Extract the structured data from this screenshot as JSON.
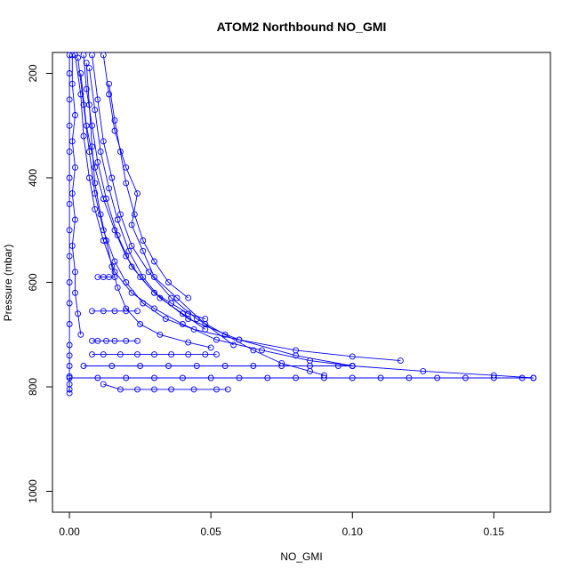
{
  "chart_data": {
    "type": "scatter",
    "title": "ATOM2 Northbound NO_GMI",
    "xlabel": "NO_GMI",
    "ylabel": "Pressure (mbar)",
    "xlim": [
      -0.006,
      0.17
    ],
    "ylim": [
      1040,
      160
    ],
    "y_reversed": true,
    "x_ticks": [
      0.0,
      0.05,
      0.1,
      0.15
    ],
    "x_tick_labels": [
      "0.00",
      "0.05",
      "0.10",
      "0.15"
    ],
    "y_ticks": [
      200,
      400,
      600,
      800,
      1000
    ],
    "y_tick_labels": [
      "200",
      "400",
      "600",
      "800",
      "1000"
    ],
    "marker": "open-circle",
    "line_style": "solid-with-points",
    "grid": false,
    "legend": "none",
    "colors": {
      "series": "#0000ff",
      "axes": "#000000",
      "background": "#ffffff"
    },
    "series": [
      {
        "x": [
          0.0,
          0.0,
          0.0,
          0.0,
          0.0,
          0.0,
          0.0,
          0.0,
          0.0,
          0.0,
          0.0,
          0.0,
          0.0,
          0.0,
          0.0,
          0.0,
          0.0,
          0.0,
          0.0
        ],
        "y": [
          165,
          200,
          250,
          300,
          350,
          400,
          450,
          500,
          550,
          600,
          640,
          680,
          720,
          740,
          760,
          780,
          795,
          805,
          812
        ]
      },
      {
        "x": [
          0.001,
          0.001,
          0.002,
          0.001,
          0.002,
          0.001,
          0.002,
          0.001,
          0.002,
          0.002,
          0.003,
          0.004
        ],
        "y": [
          165,
          220,
          280,
          330,
          380,
          430,
          480,
          530,
          580,
          620,
          660,
          700
        ]
      },
      {
        "x": [
          0.002,
          0.004,
          0.005,
          0.007,
          0.009,
          0.012,
          0.016,
          0.022,
          0.03,
          0.04,
          0.052,
          0.068,
          0.085,
          0.1
        ],
        "y": [
          165,
          240,
          320,
          400,
          460,
          520,
          580,
          620,
          650,
          680,
          710,
          730,
          750,
          760
        ]
      },
      {
        "x": [
          0.005,
          0.006,
          0.008,
          0.01,
          0.013,
          0.017,
          0.022,
          0.03,
          0.042,
          0.06,
          0.08,
          0.1,
          0.125,
          0.15,
          0.164
        ],
        "y": [
          165,
          230,
          300,
          370,
          440,
          510,
          570,
          620,
          670,
          710,
          740,
          760,
          770,
          778,
          783
        ]
      },
      {
        "x": [
          0.008,
          0.01,
          0.012,
          0.015,
          0.018,
          0.022,
          0.028,
          0.036,
          0.045,
          0.055,
          0.065,
          0.075,
          0.085,
          0.09
        ],
        "y": [
          165,
          250,
          330,
          400,
          470,
          530,
          580,
          630,
          670,
          700,
          730,
          755,
          770,
          778
        ]
      },
      {
        "x": [
          0.012,
          0.014,
          0.016,
          0.02,
          0.024,
          0.022,
          0.026,
          0.03,
          0.038,
          0.048,
          0.058
        ],
        "y": [
          165,
          240,
          310,
          380,
          430,
          490,
          540,
          590,
          630,
          680,
          720
        ]
      },
      {
        "x": [
          0.006,
          0.007,
          0.008,
          0.009,
          0.011,
          0.013,
          0.015,
          0.017,
          0.02,
          0.025,
          0.032,
          0.042,
          0.05
        ],
        "y": [
          180,
          260,
          340,
          410,
          470,
          520,
          570,
          610,
          650,
          680,
          700,
          715,
          725
        ]
      },
      {
        "x": [
          0.0,
          0.01,
          0.02,
          0.03,
          0.04,
          0.05,
          0.06,
          0.07,
          0.08,
          0.09,
          0.1,
          0.11,
          0.12,
          0.13,
          0.14,
          0.15,
          0.16,
          0.164
        ],
        "y": [
          783,
          783,
          783,
          783,
          783,
          783,
          783,
          783,
          783,
          783,
          783,
          783,
          783,
          783,
          783,
          783,
          783,
          783
        ]
      },
      {
        "x": [
          0.005,
          0.015,
          0.025,
          0.035,
          0.045,
          0.055,
          0.065,
          0.075,
          0.085,
          0.095,
          0.1
        ],
        "y": [
          760,
          760,
          760,
          760,
          760,
          760,
          760,
          760,
          760,
          760,
          760
        ]
      },
      {
        "x": [
          0.008,
          0.012,
          0.018,
          0.024,
          0.03,
          0.036,
          0.042,
          0.048,
          0.052
        ],
        "y": [
          738,
          738,
          738,
          738,
          738,
          738,
          738,
          738,
          738
        ]
      },
      {
        "x": [
          0.008,
          0.01,
          0.013,
          0.016,
          0.02,
          0.024
        ],
        "y": [
          712,
          712,
          712,
          712,
          712,
          712
        ]
      },
      {
        "x": [
          0.008,
          0.012,
          0.016,
          0.02,
          0.024
        ],
        "y": [
          655,
          655,
          655,
          655,
          655
        ]
      },
      {
        "x": [
          0.01,
          0.012,
          0.014,
          0.016
        ],
        "y": [
          590,
          590,
          590,
          590
        ]
      },
      {
        "x": [
          0.012,
          0.018,
          0.024,
          0.03,
          0.036,
          0.044,
          0.052,
          0.056
        ],
        "y": [
          795,
          805,
          805,
          805,
          805,
          805,
          805,
          805
        ]
      },
      {
        "x": [
          0.003,
          0.005,
          0.007,
          0.009,
          0.012,
          0.016,
          0.02,
          0.026,
          0.034,
          0.044,
          0.06,
          0.08,
          0.1,
          0.117
        ],
        "y": [
          170,
          260,
          350,
          430,
          500,
          560,
          600,
          640,
          670,
          690,
          710,
          730,
          742,
          750
        ]
      },
      {
        "x": [
          0.004,
          0.006,
          0.009,
          0.012,
          0.016,
          0.02,
          0.025,
          0.03,
          0.036,
          0.042,
          0.048
        ],
        "y": [
          200,
          300,
          380,
          440,
          500,
          550,
          590,
          620,
          640,
          660,
          670
        ]
      },
      {
        "x": [
          0.007,
          0.009,
          0.011,
          0.014,
          0.017,
          0.021,
          0.026,
          0.032,
          0.04,
          0.048
        ],
        "y": [
          190,
          270,
          350,
          420,
          480,
          540,
          590,
          630,
          660,
          690
        ]
      },
      {
        "x": [
          0.014,
          0.016,
          0.018,
          0.02,
          0.023,
          0.026,
          0.03,
          0.035,
          0.042
        ],
        "y": [
          220,
          290,
          350,
          410,
          470,
          520,
          560,
          600,
          630
        ]
      }
    ]
  }
}
